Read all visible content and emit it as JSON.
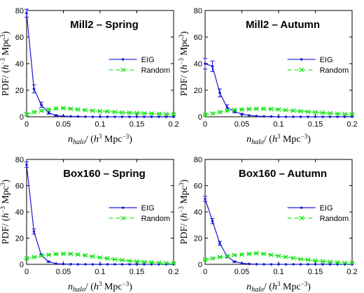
{
  "chart_data": [
    {
      "type": "line",
      "title": "Mill2 – Spring",
      "xlabel": "n_halo/ (h^3 Mpc^-3)",
      "ylabel": "PDF/ (h^-3 Mpc^3)",
      "xlim": [
        0,
        0.2
      ],
      "ylim": [
        0,
        80
      ],
      "xticks": [
        "0",
        "0.05",
        "0.1",
        "0.15",
        "0.2"
      ],
      "yticks": [
        "0",
        "20",
        "40",
        "60",
        "80"
      ],
      "legend_position": "right",
      "series": [
        {
          "name": "EIG",
          "color": "#1a1ad6",
          "marker": "dot",
          "dash": "solid",
          "x": [
            0,
            0.01,
            0.02,
            0.03,
            0.04,
            0.05,
            0.06,
            0.07,
            0.08,
            0.09,
            0.1,
            0.11,
            0.12,
            0.13,
            0.14,
            0.15,
            0.16,
            0.17,
            0.18,
            0.19,
            0.2
          ],
          "y": [
            78,
            21,
            9,
            3,
            1,
            0.5,
            0.3,
            0.2,
            0.1,
            0,
            0,
            0,
            0,
            0,
            0,
            0,
            0,
            0,
            0,
            0,
            0
          ],
          "err": [
            3,
            3,
            2,
            1,
            0.5,
            0,
            0,
            0,
            0,
            0,
            0,
            0,
            0,
            0,
            0,
            0,
            0,
            0,
            0,
            0,
            0
          ]
        },
        {
          "name": "Random",
          "color": "#1ee61e",
          "marker": "x",
          "dash": "dashed",
          "x": [
            0,
            0.01,
            0.02,
            0.03,
            0.04,
            0.05,
            0.06,
            0.07,
            0.08,
            0.09,
            0.1,
            0.11,
            0.12,
            0.13,
            0.14,
            0.15,
            0.16,
            0.17,
            0.18,
            0.19,
            0.2
          ],
          "y": [
            2,
            3.5,
            4.5,
            5.5,
            6.2,
            6.5,
            6,
            5.5,
            5,
            4.6,
            4.2,
            4,
            3.6,
            3.2,
            3,
            2.8,
            2.6,
            2.4,
            2.2,
            2,
            1.8
          ],
          "err": [
            0.6,
            0.6,
            0.6,
            0.6,
            0.7,
            0.7,
            0.6,
            0.6,
            0.6,
            0.5,
            0.5,
            0.5,
            0.5,
            0.5,
            0.5,
            0.4,
            0.4,
            0.4,
            0.4,
            0.4,
            0.4
          ]
        }
      ]
    },
    {
      "type": "line",
      "title": "Mill2 – Autumn",
      "xlabel": "n_halo/ (h^3 Mpc^-3)",
      "ylabel": "PDF/ (h^-3 Mpc^3)",
      "xlim": [
        0,
        0.2
      ],
      "ylim": [
        0,
        80
      ],
      "xticks": [
        "0",
        "0.05",
        "0.1",
        "0.15",
        "0.2"
      ],
      "yticks": [
        "0",
        "20",
        "40",
        "60",
        "80"
      ],
      "legend_position": "right",
      "series": [
        {
          "name": "EIG",
          "color": "#1a1ad6",
          "marker": "dot",
          "dash": "solid",
          "x": [
            0,
            0.01,
            0.02,
            0.03,
            0.04,
            0.05,
            0.06,
            0.07,
            0.08,
            0.09,
            0.1,
            0.11,
            0.12,
            0.13,
            0.14,
            0.15,
            0.16,
            0.17,
            0.18,
            0.19,
            0.2
          ],
          "y": [
            40,
            38,
            18,
            7,
            4,
            2,
            1,
            0.5,
            0.3,
            0.2,
            0,
            0,
            0,
            0,
            0,
            0,
            0,
            0,
            0,
            0,
            0
          ],
          "err": [
            4,
            4,
            3,
            2,
            1,
            0.5,
            0,
            0,
            0,
            0,
            0,
            0,
            0,
            0,
            0,
            0,
            0,
            0,
            0,
            0,
            0
          ]
        },
        {
          "name": "Random",
          "color": "#1ee61e",
          "marker": "x",
          "dash": "dashed",
          "x": [
            0,
            0.01,
            0.02,
            0.03,
            0.04,
            0.05,
            0.06,
            0.07,
            0.08,
            0.09,
            0.1,
            0.11,
            0.12,
            0.13,
            0.14,
            0.15,
            0.16,
            0.17,
            0.18,
            0.19,
            0.2
          ],
          "y": [
            1.5,
            2.5,
            3.5,
            4.5,
            5.2,
            5.5,
            5.8,
            6,
            6,
            5.8,
            5.5,
            5,
            4.6,
            4.2,
            3.8,
            3.4,
            3,
            2.6,
            2.3,
            2,
            1.8
          ],
          "err": [
            0.6,
            0.6,
            0.6,
            0.6,
            0.7,
            0.7,
            0.6,
            0.6,
            0.6,
            0.5,
            0.5,
            0.5,
            0.5,
            0.5,
            0.5,
            0.4,
            0.4,
            0.4,
            0.4,
            0.4,
            0.4
          ]
        }
      ]
    },
    {
      "type": "line",
      "title": "Box160 – Spring",
      "xlabel": "n_halo/ (h^3 Mpc^-3)",
      "ylabel": "PDF/ (h^-3 Mpc^3)",
      "xlim": [
        0,
        0.2
      ],
      "ylim": [
        0,
        80
      ],
      "xticks": [
        "0",
        "0.05",
        "0.1",
        "0.15",
        "0.2"
      ],
      "yticks": [
        "0",
        "20",
        "40",
        "60",
        "80"
      ],
      "legend_position": "right",
      "series": [
        {
          "name": "EIG",
          "color": "#1a1ad6",
          "marker": "dot",
          "dash": "solid",
          "x": [
            0,
            0.01,
            0.02,
            0.03,
            0.04,
            0.05,
            0.06,
            0.07,
            0.08,
            0.09,
            0.1,
            0.11,
            0.12,
            0.13,
            0.14,
            0.15,
            0.16,
            0.17,
            0.18,
            0.19,
            0.2
          ],
          "y": [
            76,
            25,
            7,
            2,
            0.5,
            0.2,
            0.1,
            0,
            0,
            0,
            0,
            0,
            0,
            0,
            0,
            0,
            0,
            0,
            0,
            0,
            0
          ],
          "err": [
            2,
            2,
            1,
            0.5,
            0,
            0,
            0,
            0,
            0,
            0,
            0,
            0,
            0,
            0,
            0,
            0,
            0,
            0,
            0,
            0,
            0
          ]
        },
        {
          "name": "Random",
          "color": "#1ee61e",
          "marker": "x",
          "dash": "dashed",
          "x": [
            0,
            0.01,
            0.02,
            0.03,
            0.04,
            0.05,
            0.06,
            0.07,
            0.08,
            0.09,
            0.1,
            0.11,
            0.12,
            0.13,
            0.14,
            0.15,
            0.16,
            0.17,
            0.18,
            0.19,
            0.2
          ],
          "y": [
            4.5,
            5.5,
            6.5,
            7.2,
            7.8,
            8,
            8,
            7.5,
            6.8,
            6,
            5.2,
            4.5,
            3.8,
            3.2,
            2.6,
            2.2,
            1.8,
            1.5,
            1.2,
            1,
            0.8
          ],
          "err": [
            0.5,
            0.5,
            0.5,
            0.5,
            0.6,
            0.6,
            0.6,
            0.6,
            0.5,
            0.5,
            0.5,
            0.5,
            0.4,
            0.4,
            0.4,
            0.4,
            0.3,
            0.3,
            0.3,
            0.3,
            0.3
          ]
        }
      ]
    },
    {
      "type": "line",
      "title": "Box160 – Autumn",
      "xlabel": "n_halo/ (h^3 Mpc^-3)",
      "ylabel": "PDF/ (h^-3 Mpc^3)",
      "xlim": [
        0,
        0.2
      ],
      "ylim": [
        0,
        80
      ],
      "xticks": [
        "0",
        "0.05",
        "0.1",
        "0.15",
        "0.2"
      ],
      "yticks": [
        "0",
        "20",
        "40",
        "60",
        "80"
      ],
      "legend_position": "right",
      "series": [
        {
          "name": "EIG",
          "color": "#1a1ad6",
          "marker": "dot",
          "dash": "solid",
          "x": [
            0,
            0.01,
            0.02,
            0.03,
            0.04,
            0.05,
            0.06,
            0.07,
            0.08,
            0.09,
            0.1,
            0.11,
            0.12,
            0.13,
            0.14,
            0.15,
            0.16,
            0.17,
            0.18,
            0.19,
            0.2
          ],
          "y": [
            50,
            33,
            16,
            6,
            2,
            0.8,
            0.3,
            0.1,
            0,
            0,
            0,
            0,
            0,
            0,
            0,
            0,
            0,
            0,
            0,
            0,
            0
          ],
          "err": [
            2,
            2,
            1.5,
            1,
            0.5,
            0,
            0,
            0,
            0,
            0,
            0,
            0,
            0,
            0,
            0,
            0,
            0,
            0,
            0,
            0,
            0
          ]
        },
        {
          "name": "Random",
          "color": "#1ee61e",
          "marker": "x",
          "dash": "dashed",
          "x": [
            0,
            0.01,
            0.02,
            0.03,
            0.04,
            0.05,
            0.06,
            0.07,
            0.08,
            0.09,
            0.1,
            0.11,
            0.12,
            0.13,
            0.14,
            0.15,
            0.16,
            0.17,
            0.18,
            0.19,
            0.2
          ],
          "y": [
            3.5,
            4.5,
            5.5,
            6.2,
            7,
            7.5,
            8,
            8.5,
            8,
            7.2,
            6.4,
            5.6,
            4.8,
            4,
            3.4,
            2.8,
            2.3,
            1.9,
            1.5,
            1.2,
            1
          ],
          "err": [
            0.5,
            0.5,
            0.5,
            0.5,
            0.6,
            0.6,
            0.6,
            0.6,
            0.5,
            0.5,
            0.5,
            0.5,
            0.4,
            0.4,
            0.4,
            0.4,
            0.3,
            0.3,
            0.3,
            0.3,
            0.3
          ]
        }
      ]
    }
  ]
}
